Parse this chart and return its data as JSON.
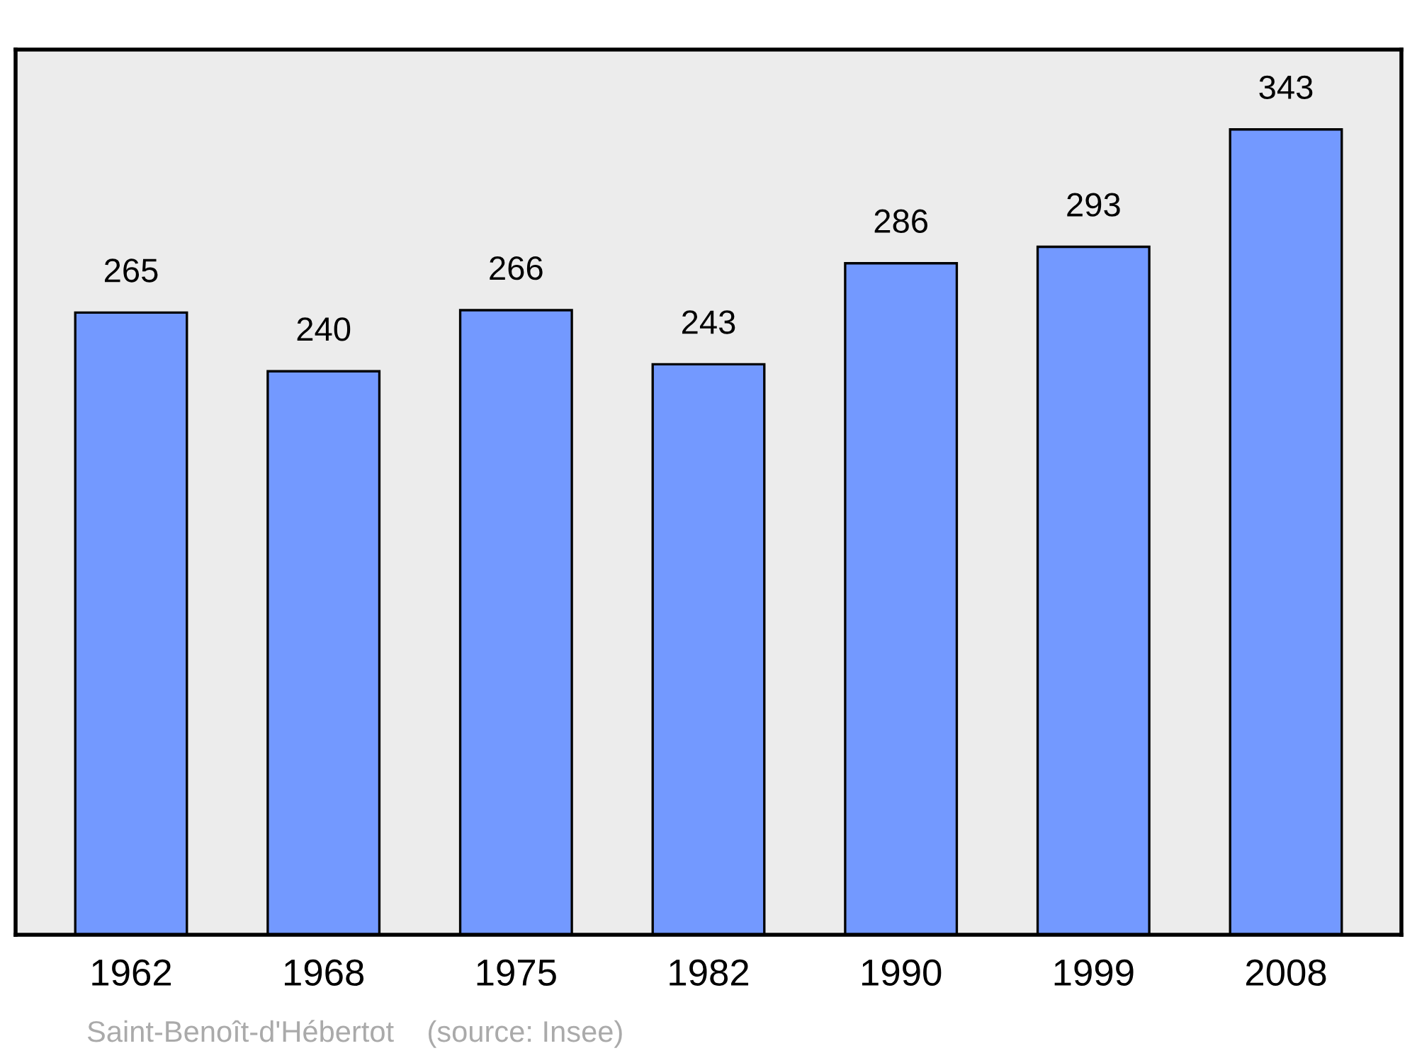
{
  "chart_data": {
    "type": "bar",
    "categories": [
      "1962",
      "1968",
      "1975",
      "1982",
      "1990",
      "1999",
      "2008"
    ],
    "values": [
      265,
      240,
      266,
      243,
      286,
      293,
      343
    ],
    "color": "#7399ff",
    "ylim": [
      0,
      377
    ],
    "data_labels": true,
    "tick_labels": "x",
    "grid": false,
    "legend": false,
    "annotations": [
      "Saint-Benoît-d'Hébertot    (source: Insee)"
    ]
  }
}
